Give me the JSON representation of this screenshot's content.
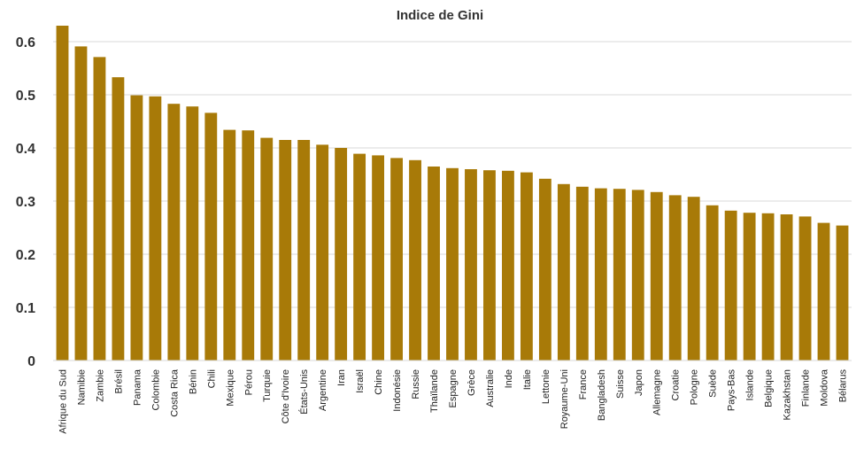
{
  "chart_data": {
    "type": "bar",
    "title": "Indice de Gini",
    "xlabel": "",
    "ylabel": "",
    "ylim": [
      0,
      0.6
    ],
    "yticks": [
      "0",
      "0.1",
      "0.2",
      "0.3",
      "0.4",
      "0.5",
      "0.6"
    ],
    "grid": true,
    "legend": "none",
    "bar_color": "#A87A08",
    "categories": [
      "Afrique du Sud",
      "Namibie",
      "Zambie",
      "Brésil",
      "Panama",
      "Colombie",
      "Costa Rica",
      "Bénin",
      "Chili",
      "Mexique",
      "Pérou",
      "Turquie",
      "Côte d'Ivoire",
      "États-Unis",
      "Argentine",
      "Iran",
      "Israël",
      "Chine",
      "Indonésie",
      "Russie",
      "Thaïlande",
      "Espagne",
      "Grèce",
      "Australie",
      "Inde",
      "Italie",
      "Lettonie",
      "Royaume-Uni",
      "France",
      "Bangladesh",
      "Suisse",
      "Japon",
      "Allemagne",
      "Croatie",
      "Pologne",
      "Suède",
      "Pays-Bas",
      "Islande",
      "Belgique",
      "Kazakhstan",
      "Finlande",
      "Moldova",
      "Bélarus"
    ],
    "values": [
      0.63,
      0.591,
      0.571,
      0.533,
      0.499,
      0.497,
      0.483,
      0.478,
      0.466,
      0.434,
      0.433,
      0.419,
      0.415,
      0.415,
      0.406,
      0.4,
      0.389,
      0.386,
      0.381,
      0.377,
      0.365,
      0.362,
      0.36,
      0.358,
      0.357,
      0.354,
      0.342,
      0.332,
      0.327,
      0.324,
      0.323,
      0.321,
      0.317,
      0.311,
      0.308,
      0.292,
      0.282,
      0.278,
      0.277,
      0.275,
      0.271,
      0.259,
      0.254
    ]
  }
}
